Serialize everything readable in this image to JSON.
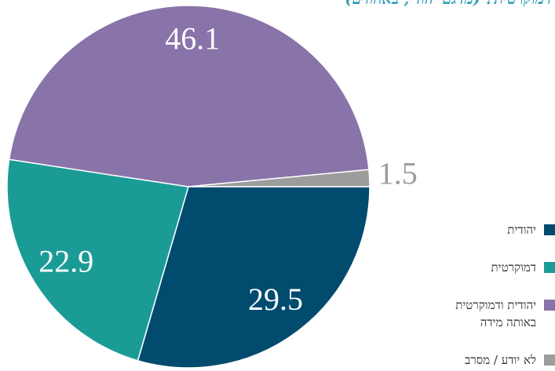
{
  "chart_data": {
    "type": "pie",
    "title": "דמוקרטית? (מדגם יהודי, באחוזים)",
    "categories": [
      "יהודית",
      "דמוקרטית",
      "יהודית ודמוקרטית באותה מידה",
      "לא יודע / מסרב"
    ],
    "values": [
      29.5,
      22.9,
      46.1,
      1.5
    ],
    "colors": [
      "#004b6e",
      "#1b9b96",
      "#8874a9",
      "#9c9c9c"
    ],
    "legend": "right"
  }
}
